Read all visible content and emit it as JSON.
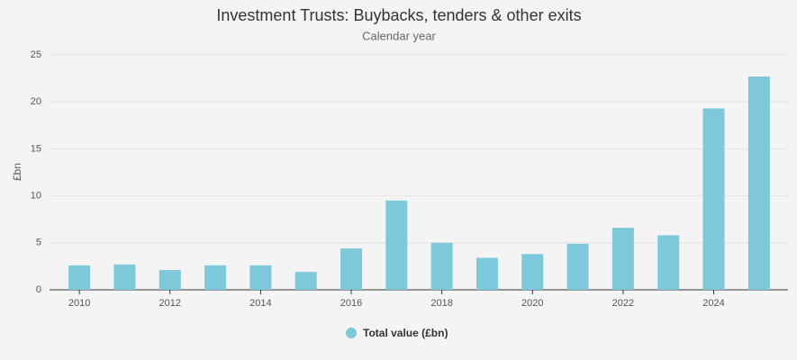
{
  "chart_data": {
    "type": "bar",
    "title": "Investment Trusts: Buybacks, tenders & other exits",
    "subtitle": "Calendar year",
    "y_label": "£bn",
    "categories": [
      "2010",
      null,
      "2012",
      null,
      "2014",
      null,
      "2016",
      null,
      "2018",
      null,
      "2020",
      null,
      "2022",
      null,
      "2024",
      null
    ],
    "series": [
      {
        "name": "Total value (£bn)",
        "color": "#7ec8db",
        "values": [
          2.6,
          2.7,
          2.1,
          2.6,
          2.6,
          1.9,
          4.4,
          9.5,
          5.0,
          3.4,
          3.8,
          4.9,
          6.6,
          5.8,
          19.3,
          22.7
        ]
      }
    ],
    "ylim": [
      0,
      25
    ],
    "yticks": [
      0,
      5,
      10,
      15,
      20,
      25
    ],
    "grid": true
  }
}
